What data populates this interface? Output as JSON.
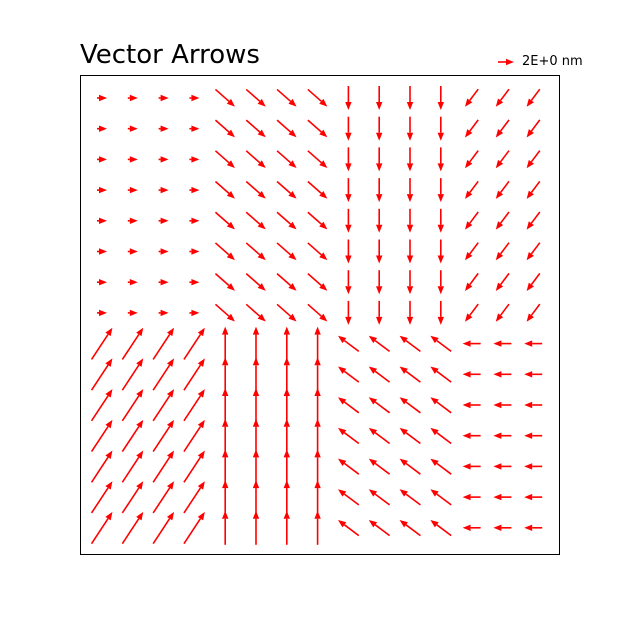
{
  "chart_data": {
    "type": "quiver",
    "title": "Vector Arrows",
    "xlabel": "",
    "ylabel": "",
    "axes_ticks": false,
    "grid": false,
    "color": "#ff0000",
    "quiverkey": {
      "label": "2E+0 nm",
      "length": 2,
      "placement": "top-right outside axes"
    },
    "grid_size": {
      "columns": 15,
      "rows": 15
    },
    "regions": [
      {
        "name": "upper-left",
        "columns": "1-4",
        "rows_from_top": "1-8",
        "direction": "right",
        "magnitude": 0.5
      },
      {
        "name": "upper-middle",
        "columns": "5-8",
        "rows_from_top": "1-8",
        "direction": "down-right",
        "magnitude": 1.3
      },
      {
        "name": "upper-right-a",
        "columns": "9-12",
        "rows_from_top": "1-8",
        "direction": "down",
        "magnitude": 1.2
      },
      {
        "name": "upper-right-b",
        "columns": "13-15",
        "rows_from_top": "1-8",
        "direction": "down-left",
        "magnitude": 1.1
      },
      {
        "name": "lower-left",
        "columns": "1-4",
        "rows_from_top": "9-15",
        "direction": "up-right",
        "magnitude": 1.9
      },
      {
        "name": "lower-middle",
        "columns": "5-8",
        "rows_from_top": "9-15",
        "direction": "up",
        "magnitude": 1.7
      },
      {
        "name": "lower-right-a",
        "columns": "9-12",
        "rows_from_top": "9-15",
        "direction": "up-left",
        "magnitude": 1.3
      },
      {
        "name": "lower-right-b",
        "columns": "13-15",
        "rows_from_top": "9-15",
        "direction": "left",
        "magnitude": 0.9
      }
    ]
  }
}
